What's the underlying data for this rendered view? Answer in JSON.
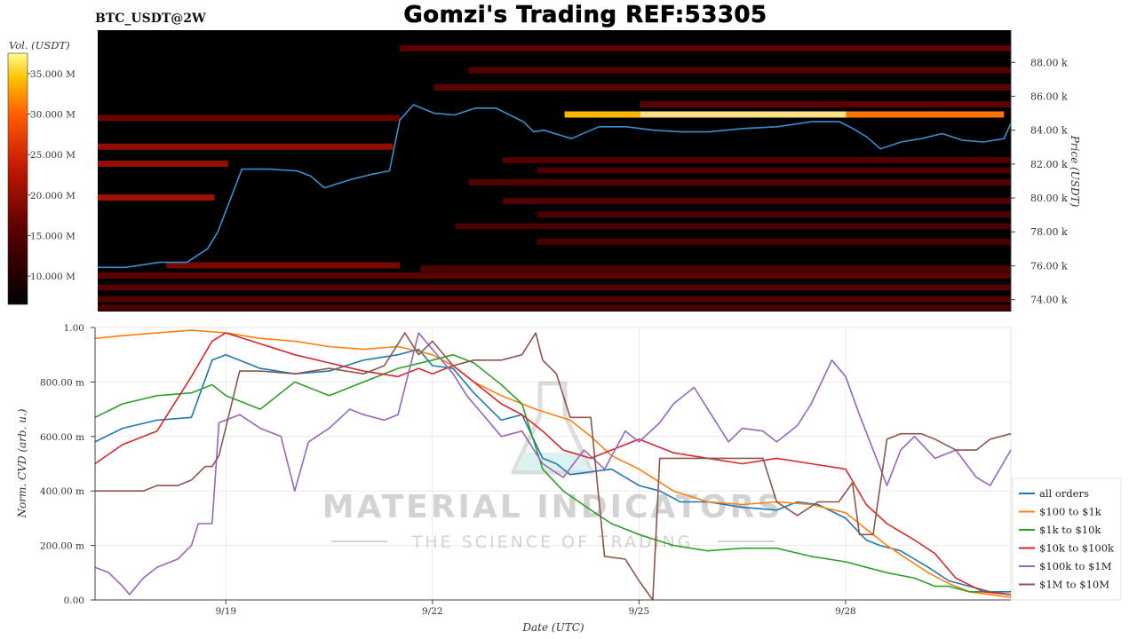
{
  "header": {
    "pair_label": "BTC_USDT@2W",
    "main_title": "Gomzi's Trading REF:53305"
  },
  "watermark": {
    "brand": "MATERIAL INDICATORS",
    "tagline": "THE SCIENCE OF TRADING"
  },
  "colors": {
    "heatmap_bg": "#000000",
    "price_line": "#3a8fd1",
    "all_orders": "#1f77b4",
    "100_1k": "#ff7f0e",
    "1k_10k": "#2ca02c",
    "10k_100k": "#d62728",
    "100k_1m": "#9467bd",
    "1m_10m": "#8c564b"
  },
  "chart_data": [
    {
      "type": "heatmap",
      "title": "",
      "colorbar_label": "Vol. (USDT)",
      "colorbar_ticks": [
        "10.000 M",
        "15.000 M",
        "20.000 M",
        "25.000 M",
        "30.000 M",
        "35.000 M"
      ],
      "colorbar_values": [
        10,
        15,
        20,
        25,
        30,
        35
      ],
      "colorbar_range": [
        6.5,
        37.5
      ],
      "ylabel": "Price (USDT)",
      "y_ticks": [
        "74.00 k",
        "76.00 k",
        "78.00 k",
        "80.00 k",
        "82.00 k",
        "84.00 k",
        "86.00 k",
        "88.00 k"
      ],
      "y_tick_values": [
        74,
        76,
        78,
        80,
        82,
        84,
        86,
        88
      ],
      "ylim": [
        73.3,
        89.9
      ],
      "x_range_days": [
        17.1,
        30.4
      ],
      "price_line": {
        "x": [
          17.1,
          17.5,
          18.0,
          18.4,
          18.7,
          18.85,
          19.2,
          19.6,
          20.0,
          20.2,
          20.4,
          20.8,
          21.1,
          21.35,
          21.5,
          21.7,
          22.0,
          22.3,
          22.6,
          22.9,
          23.3,
          23.45,
          23.6,
          24.0,
          24.4,
          24.8,
          25.2,
          25.6,
          26.0,
          26.5,
          27.0,
          27.5,
          27.9,
          28.1,
          28.3,
          28.5,
          28.8,
          29.1,
          29.4,
          29.7,
          30.0,
          30.3,
          30.4
        ],
        "y": [
          75.9,
          75.9,
          76.2,
          76.2,
          77.0,
          78.0,
          81.7,
          81.7,
          81.6,
          81.3,
          80.6,
          81.1,
          81.4,
          81.6,
          84.6,
          85.5,
          85.0,
          84.9,
          85.3,
          85.3,
          84.5,
          83.9,
          84.0,
          83.5,
          84.2,
          84.2,
          84.0,
          83.9,
          83.9,
          84.1,
          84.2,
          84.5,
          84.5,
          84.1,
          83.6,
          82.9,
          83.3,
          83.5,
          83.8,
          83.4,
          83.3,
          83.5,
          84.4
        ]
      },
      "walls": [
        {
          "price": 84.9,
          "x": [
            23.9,
            25.0
          ],
          "volume": 34
        },
        {
          "price": 84.9,
          "x": [
            25.0,
            28.0
          ],
          "volume": 36
        },
        {
          "price": 84.9,
          "x": [
            28.0,
            30.3
          ],
          "volume": 31
        },
        {
          "price": 85.5,
          "x": [
            27.7,
            29.3
          ],
          "volume": 28
        },
        {
          "price": 76.0,
          "x": [
            18.1,
            21.5
          ],
          "volume": 18
        },
        {
          "price": 82.0,
          "x": [
            17.1,
            19.0
          ],
          "volume": 20
        },
        {
          "price": 83.0,
          "x": [
            17.1,
            21.4
          ],
          "volume": 20
        },
        {
          "price": 80.0,
          "x": [
            17.1,
            18.8
          ],
          "volume": 21
        },
        {
          "price": 84.7,
          "x": [
            17.1,
            21.5
          ],
          "volume": 17
        },
        {
          "price": 88.8,
          "x": [
            21.5,
            30.4
          ],
          "volume": 16
        },
        {
          "price": 87.5,
          "x": [
            22.5,
            30.4
          ],
          "volume": 15
        },
        {
          "price": 86.5,
          "x": [
            22.0,
            30.4
          ],
          "volume": 16
        },
        {
          "price": 85.5,
          "x": [
            25.0,
            30.4
          ],
          "volume": 16
        },
        {
          "price": 82.2,
          "x": [
            23.0,
            30.4
          ],
          "volume": 15
        },
        {
          "price": 81.6,
          "x": [
            23.5,
            30.4
          ],
          "volume": 14
        },
        {
          "price": 80.9,
          "x": [
            22.5,
            30.4
          ],
          "volume": 15
        },
        {
          "price": 79.8,
          "x": [
            23.0,
            30.4
          ],
          "volume": 15
        },
        {
          "price": 79.0,
          "x": [
            23.5,
            30.4
          ],
          "volume": 14
        },
        {
          "price": 78.3,
          "x": [
            22.3,
            30.4
          ],
          "volume": 14
        },
        {
          "price": 77.4,
          "x": [
            23.5,
            30.4
          ],
          "volume": 14
        },
        {
          "price": 75.8,
          "x": [
            21.8,
            30.4
          ],
          "volume": 15
        },
        {
          "price": 75.4,
          "x": [
            17.1,
            30.4
          ],
          "volume": 16
        },
        {
          "price": 74.7,
          "x": [
            17.1,
            30.4
          ],
          "volume": 15
        },
        {
          "price": 74.0,
          "x": [
            17.1,
            30.4
          ],
          "volume": 15
        },
        {
          "price": 73.5,
          "x": [
            17.1,
            30.4
          ],
          "volume": 14
        }
      ]
    },
    {
      "type": "line",
      "title": "",
      "xlabel": "Date (UTC)",
      "ylabel": "Norm. CVD (arb. u.)",
      "ylim": [
        0,
        1
      ],
      "y_ticks": [
        "0.00",
        "200.00 m",
        "400.00 m",
        "600.00 m",
        "800.00 m",
        "1.00"
      ],
      "y_tick_values": [
        0,
        0.2,
        0.4,
        0.6,
        0.8,
        1.0
      ],
      "x_ticks": [
        "9/19",
        "9/22",
        "9/25",
        "9/28"
      ],
      "x_tick_values": [
        19,
        22,
        25,
        28
      ],
      "xlim": [
        17.1,
        30.4
      ],
      "legend_position": "bottom-right",
      "series": [
        {
          "name": "all orders",
          "color_key": "all_orders",
          "x": [
            17.1,
            17.5,
            18.0,
            18.5,
            18.8,
            19.0,
            19.5,
            20.0,
            20.5,
            21.0,
            21.5,
            21.8,
            22.0,
            22.3,
            22.6,
            23.0,
            23.3,
            23.6,
            23.8,
            24.0,
            24.3,
            24.6,
            25.0,
            25.3,
            25.6,
            26.0,
            26.5,
            27.0,
            27.3,
            27.6,
            28.0,
            28.3,
            28.5,
            28.8,
            29.0,
            29.2,
            29.5,
            29.8,
            30.1,
            30.4
          ],
          "y": [
            0.58,
            0.63,
            0.66,
            0.67,
            0.88,
            0.9,
            0.85,
            0.83,
            0.84,
            0.88,
            0.9,
            0.92,
            0.86,
            0.85,
            0.76,
            0.66,
            0.68,
            0.52,
            0.5,
            0.46,
            0.47,
            0.48,
            0.42,
            0.4,
            0.36,
            0.36,
            0.34,
            0.33,
            0.36,
            0.35,
            0.3,
            0.22,
            0.2,
            0.18,
            0.15,
            0.12,
            0.07,
            0.05,
            0.03,
            0.03
          ]
        },
        {
          "name": "$100 to $1k",
          "color_key": "100_1k",
          "x": [
            17.1,
            17.5,
            18.0,
            18.5,
            19.0,
            19.5,
            20.0,
            20.5,
            21.0,
            21.5,
            22.0,
            22.3,
            22.6,
            23.0,
            23.5,
            24.0,
            24.3,
            24.6,
            25.0,
            25.5,
            26.0,
            26.5,
            27.0,
            27.5,
            28.0,
            28.3,
            28.6,
            28.9,
            29.2,
            29.5,
            29.8,
            30.1,
            30.4
          ],
          "y": [
            0.96,
            0.97,
            0.98,
            0.99,
            0.98,
            0.96,
            0.95,
            0.93,
            0.92,
            0.93,
            0.9,
            0.86,
            0.8,
            0.75,
            0.7,
            0.66,
            0.6,
            0.53,
            0.48,
            0.4,
            0.36,
            0.35,
            0.36,
            0.35,
            0.32,
            0.26,
            0.2,
            0.15,
            0.1,
            0.06,
            0.03,
            0.02,
            0.01
          ]
        },
        {
          "name": "$1k to $10k",
          "color_key": "1k_10k",
          "x": [
            17.1,
            17.5,
            18.0,
            18.5,
            18.8,
            19.0,
            19.5,
            20.0,
            20.5,
            21.0,
            21.5,
            22.0,
            22.3,
            22.6,
            23.0,
            23.3,
            23.6,
            23.9,
            24.3,
            24.6,
            25.0,
            25.5,
            26.0,
            26.5,
            27.0,
            27.5,
            28.0,
            28.3,
            28.6,
            29.0,
            29.3,
            29.5,
            29.8,
            30.1,
            30.4
          ],
          "y": [
            0.67,
            0.72,
            0.75,
            0.76,
            0.79,
            0.75,
            0.7,
            0.8,
            0.75,
            0.8,
            0.85,
            0.88,
            0.9,
            0.87,
            0.79,
            0.72,
            0.48,
            0.4,
            0.33,
            0.28,
            0.24,
            0.2,
            0.18,
            0.19,
            0.19,
            0.16,
            0.14,
            0.12,
            0.1,
            0.08,
            0.05,
            0.05,
            0.03,
            0.03,
            0.02
          ]
        },
        {
          "name": "$10k to $100k",
          "color_key": "10k_100k",
          "x": [
            17.1,
            17.5,
            18.0,
            18.5,
            18.8,
            19.0,
            19.5,
            20.0,
            20.5,
            21.0,
            21.5,
            21.8,
            22.0,
            22.3,
            22.6,
            23.0,
            23.3,
            23.6,
            23.9,
            24.3,
            24.6,
            25.0,
            25.5,
            26.0,
            26.5,
            27.0,
            27.5,
            28.0,
            28.3,
            28.6,
            29.0,
            29.3,
            29.6,
            30.0,
            30.4
          ],
          "y": [
            0.5,
            0.57,
            0.62,
            0.82,
            0.95,
            0.98,
            0.94,
            0.9,
            0.87,
            0.84,
            0.82,
            0.85,
            0.83,
            0.86,
            0.8,
            0.72,
            0.68,
            0.62,
            0.55,
            0.52,
            0.55,
            0.59,
            0.54,
            0.52,
            0.5,
            0.52,
            0.5,
            0.48,
            0.35,
            0.28,
            0.22,
            0.17,
            0.08,
            0.03,
            0.02
          ]
        },
        {
          "name": "$100k to $1M",
          "color_key": "100k_1m",
          "x": [
            17.1,
            17.3,
            17.5,
            17.6,
            17.8,
            18.0,
            18.3,
            18.5,
            18.6,
            18.8,
            18.9,
            19.2,
            19.5,
            19.8,
            20.0,
            20.2,
            20.5,
            20.8,
            21.0,
            21.3,
            21.5,
            21.8,
            22.0,
            22.3,
            22.5,
            22.8,
            23.0,
            23.3,
            23.6,
            23.9,
            24.2,
            24.5,
            24.8,
            25.0,
            25.3,
            25.5,
            25.8,
            26.0,
            26.3,
            26.5,
            26.8,
            27.0,
            27.3,
            27.5,
            27.8,
            28.0,
            28.2,
            28.4,
            28.6,
            28.8,
            29.0,
            29.3,
            29.6,
            29.9,
            30.1,
            30.4
          ],
          "y": [
            0.12,
            0.1,
            0.05,
            0.02,
            0.08,
            0.12,
            0.15,
            0.2,
            0.28,
            0.28,
            0.65,
            0.68,
            0.63,
            0.6,
            0.4,
            0.58,
            0.63,
            0.7,
            0.68,
            0.66,
            0.68,
            0.98,
            0.92,
            0.83,
            0.75,
            0.66,
            0.6,
            0.62,
            0.5,
            0.45,
            0.55,
            0.48,
            0.62,
            0.58,
            0.65,
            0.72,
            0.78,
            0.7,
            0.58,
            0.63,
            0.62,
            0.58,
            0.64,
            0.72,
            0.88,
            0.82,
            0.68,
            0.55,
            0.42,
            0.55,
            0.6,
            0.52,
            0.55,
            0.45,
            0.42,
            0.55
          ]
        },
        {
          "name": "$1M to $10M",
          "color_key": "1m_10m",
          "x": [
            17.1,
            17.8,
            18.0,
            18.3,
            18.5,
            18.7,
            18.8,
            18.9,
            19.2,
            19.5,
            20.0,
            20.5,
            21.0,
            21.3,
            21.5,
            21.6,
            21.8,
            22.0,
            22.3,
            22.6,
            23.0,
            23.3,
            23.5,
            23.6,
            23.8,
            24.0,
            24.3,
            24.5,
            24.8,
            25.0,
            25.2,
            25.3,
            25.6,
            25.9,
            26.2,
            26.5,
            26.8,
            27.0,
            27.3,
            27.6,
            27.9,
            28.1,
            28.2,
            28.4,
            28.6,
            28.8,
            29.1,
            29.3,
            29.6,
            29.9,
            30.1,
            30.4
          ],
          "y": [
            0.4,
            0.4,
            0.42,
            0.42,
            0.44,
            0.49,
            0.49,
            0.53,
            0.84,
            0.84,
            0.83,
            0.85,
            0.83,
            0.86,
            0.94,
            0.98,
            0.9,
            0.95,
            0.86,
            0.88,
            0.88,
            0.9,
            0.98,
            0.88,
            0.83,
            0.67,
            0.67,
            0.16,
            0.15,
            0.07,
            0.0,
            0.52,
            0.52,
            0.52,
            0.52,
            0.52,
            0.52,
            0.36,
            0.31,
            0.36,
            0.36,
            0.43,
            0.24,
            0.24,
            0.59,
            0.61,
            0.61,
            0.59,
            0.55,
            0.55,
            0.59,
            0.61
          ]
        }
      ]
    }
  ]
}
